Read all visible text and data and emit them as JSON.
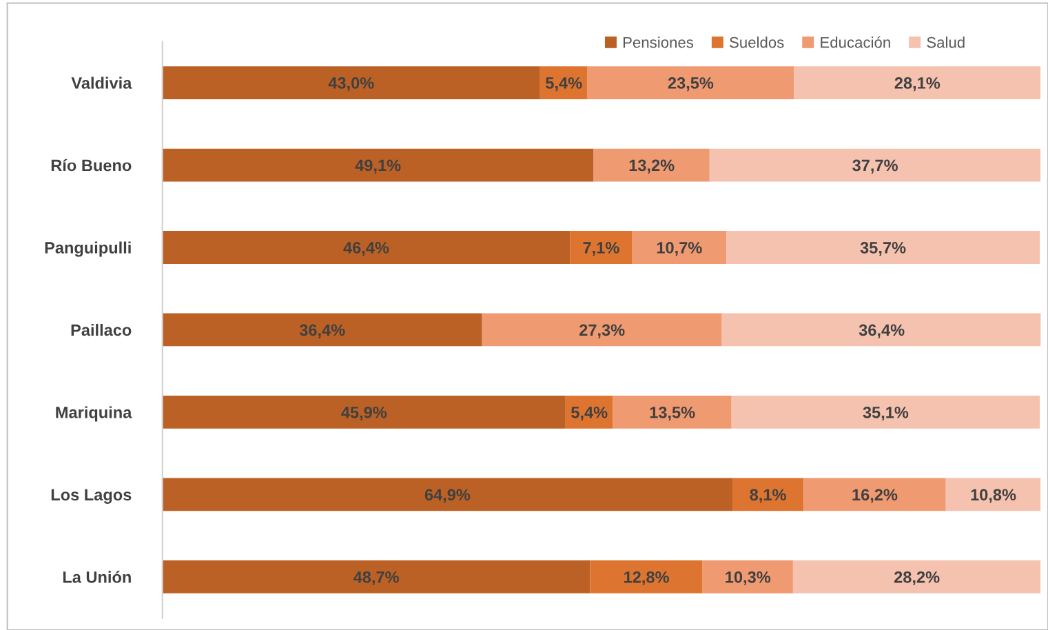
{
  "chart_data": {
    "type": "bar",
    "orientation": "horizontal",
    "stacked": true,
    "categories": [
      "Valdivia",
      "Río Bueno",
      "Panguipulli",
      "Paillaco",
      "Mariquina",
      "Los Lagos",
      "La Unión"
    ],
    "series": [
      {
        "name": "Pensiones",
        "color": "#bc6125",
        "values": [
          43.0,
          49.1,
          46.4,
          36.4,
          45.9,
          64.9,
          48.7
        ],
        "value_labels": [
          "43,0%",
          "49,1%",
          "46,4%",
          "36,4%",
          "45,9%",
          "64,9%",
          "48,7%"
        ]
      },
      {
        "name": "Sueldos",
        "color": "#dd7530",
        "values": [
          5.4,
          null,
          7.1,
          null,
          5.4,
          8.1,
          12.8
        ],
        "value_labels": [
          "5,4%",
          null,
          "7,1%",
          null,
          "5,4%",
          "8,1%",
          "12,8%"
        ]
      },
      {
        "name": "Educación",
        "color": "#f09a72",
        "values": [
          23.5,
          13.2,
          10.7,
          27.3,
          13.5,
          16.2,
          10.3
        ],
        "value_labels": [
          "23,5%",
          "13,2%",
          "10,7%",
          "27,3%",
          "13,5%",
          "16,2%",
          "10,3%"
        ]
      },
      {
        "name": "Salud",
        "color": "#f5c2b0",
        "values": [
          28.1,
          37.7,
          35.7,
          36.4,
          35.1,
          10.8,
          28.2
        ],
        "value_labels": [
          "28,1%",
          "37,7%",
          "35,7%",
          "36,4%",
          "35,1%",
          "10,8%",
          "28,2%"
        ]
      }
    ],
    "xlim": [
      0,
      100
    ],
    "tick_labels": "y",
    "grid": false,
    "legend": "top right"
  }
}
